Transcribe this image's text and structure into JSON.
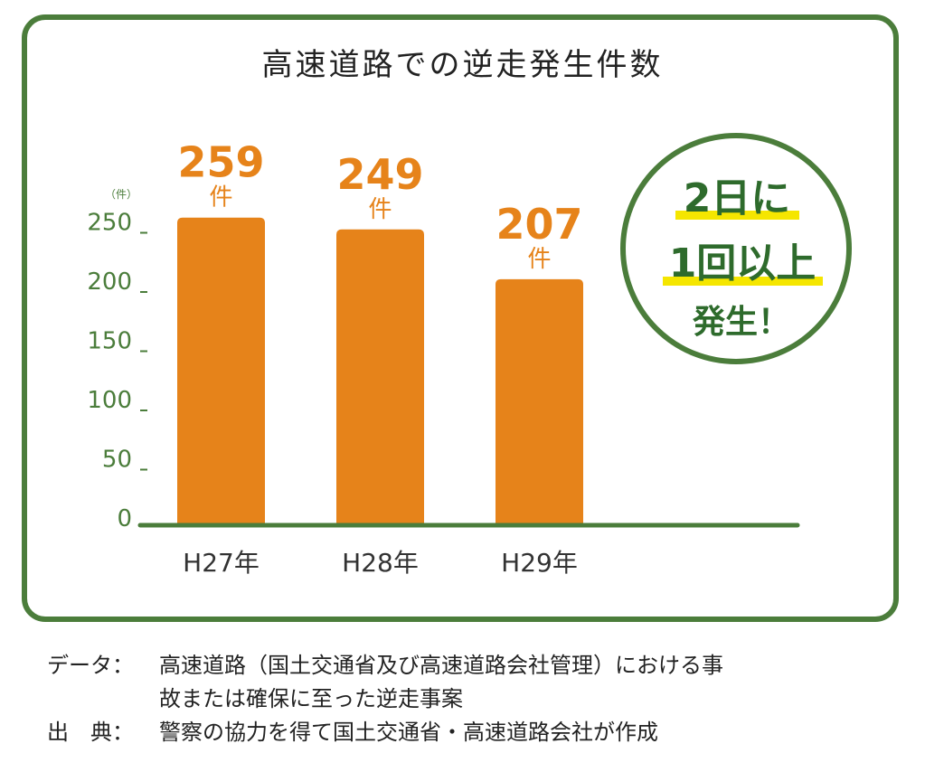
{
  "chart_data": {
    "type": "bar",
    "title": "高速道路での逆走発生件数",
    "unit_label": "（件）",
    "categories": [
      "H27年",
      "H28年",
      "H29年"
    ],
    "values": [
      259,
      249,
      207
    ],
    "value_suffix": "件",
    "yticks": [
      0,
      50,
      100,
      150,
      200,
      250
    ],
    "ylim": [
      0,
      260
    ],
    "grid": false,
    "colors": {
      "bar": "#e6831a",
      "axis": "#4b7d3b",
      "tick_text": "#4b7d3b",
      "highlight": "#f5e600"
    }
  },
  "callout": {
    "line1": "2日に",
    "line2": "1回以上",
    "line3": "発生！"
  },
  "footer": {
    "data_label": "データ：",
    "data_line1": "高速道路（国土交通省及び高速道路会社管理）における事",
    "data_line2": "故または確保に至った逆走事案",
    "source_label": "出　典：",
    "source_text": "警察の協力を得て国土交通省・高速道路会社が作成"
  }
}
